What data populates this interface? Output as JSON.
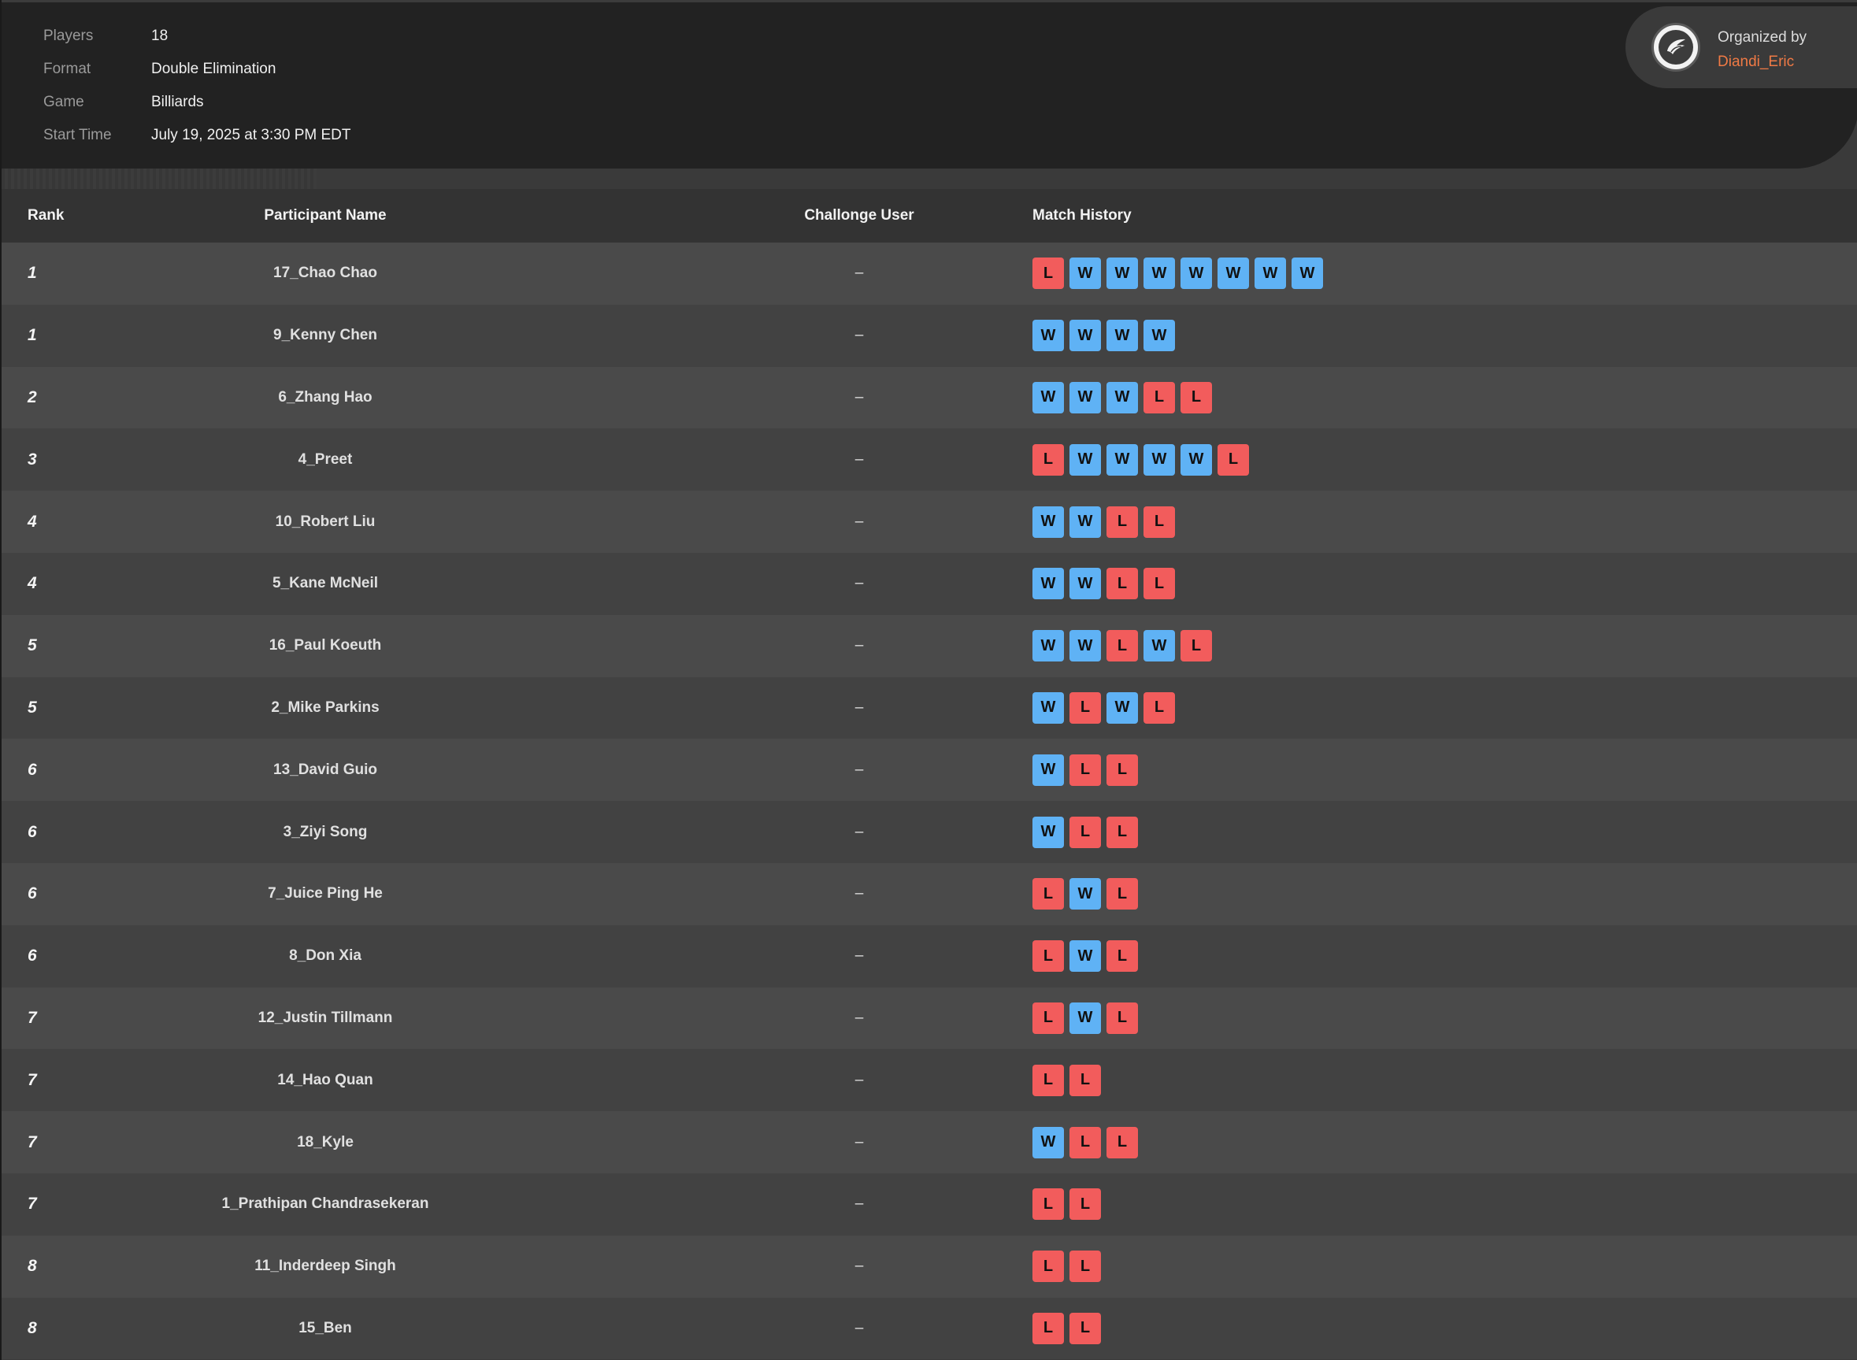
{
  "info": {
    "rows": [
      {
        "label": "Players",
        "value": "18"
      },
      {
        "label": "Format",
        "value": "Double Elimination"
      },
      {
        "label": "Game",
        "value": "Billiards"
      },
      {
        "label": "Start Time",
        "value": "July 19, 2025 at 3:30 PM EDT"
      }
    ]
  },
  "organizer": {
    "caption": "Organized by",
    "name": "Diandi_Eric",
    "avatar_icon": "wing-logo-icon"
  },
  "table": {
    "headers": {
      "rank": "Rank",
      "name": "Participant Name",
      "challenge": "Challonge User",
      "history": "Match History"
    },
    "rows": [
      {
        "rank": "1",
        "name": "17_Chao Chao",
        "challenge": "–",
        "history": [
          "L",
          "W",
          "W",
          "W",
          "W",
          "W",
          "W",
          "W"
        ]
      },
      {
        "rank": "1",
        "name": "9_Kenny Chen",
        "challenge": "–",
        "history": [
          "W",
          "W",
          "W",
          "W"
        ]
      },
      {
        "rank": "2",
        "name": "6_Zhang Hao",
        "challenge": "–",
        "history": [
          "W",
          "W",
          "W",
          "L",
          "L"
        ]
      },
      {
        "rank": "3",
        "name": "4_Preet",
        "challenge": "–",
        "history": [
          "L",
          "W",
          "W",
          "W",
          "W",
          "L"
        ]
      },
      {
        "rank": "4",
        "name": "10_Robert Liu",
        "challenge": "–",
        "history": [
          "W",
          "W",
          "L",
          "L"
        ]
      },
      {
        "rank": "4",
        "name": "5_Kane McNeil",
        "challenge": "–",
        "history": [
          "W",
          "W",
          "L",
          "L"
        ]
      },
      {
        "rank": "5",
        "name": "16_Paul Koeuth",
        "challenge": "–",
        "history": [
          "W",
          "W",
          "L",
          "W",
          "L"
        ]
      },
      {
        "rank": "5",
        "name": "2_Mike Parkins",
        "challenge": "–",
        "history": [
          "W",
          "L",
          "W",
          "L"
        ]
      },
      {
        "rank": "6",
        "name": "13_David Guio",
        "challenge": "–",
        "history": [
          "W",
          "L",
          "L"
        ]
      },
      {
        "rank": "6",
        "name": "3_Ziyi Song",
        "challenge": "–",
        "history": [
          "W",
          "L",
          "L"
        ]
      },
      {
        "rank": "6",
        "name": "7_Juice Ping He",
        "challenge": "–",
        "history": [
          "L",
          "W",
          "L"
        ]
      },
      {
        "rank": "6",
        "name": "8_Don Xia",
        "challenge": "–",
        "history": [
          "L",
          "W",
          "L"
        ]
      },
      {
        "rank": "7",
        "name": "12_Justin Tillmann",
        "challenge": "–",
        "history": [
          "L",
          "W",
          "L"
        ]
      },
      {
        "rank": "7",
        "name": "14_Hao Quan",
        "challenge": "–",
        "history": [
          "L",
          "L"
        ]
      },
      {
        "rank": "7",
        "name": "18_Kyle",
        "challenge": "–",
        "history": [
          "W",
          "L",
          "L"
        ]
      },
      {
        "rank": "7",
        "name": "1_Prathipan Chandrasekeran",
        "challenge": "–",
        "history": [
          "L",
          "L"
        ]
      },
      {
        "rank": "8",
        "name": "11_Inderdeep Singh",
        "challenge": "–",
        "history": [
          "L",
          "L"
        ]
      },
      {
        "rank": "8",
        "name": "15_Ben",
        "challenge": "–",
        "history": [
          "L",
          "L"
        ]
      }
    ]
  },
  "colors": {
    "win_badge": "#5fb2f5",
    "loss_badge": "#f25c5c",
    "organizer_name": "#f07a45"
  }
}
